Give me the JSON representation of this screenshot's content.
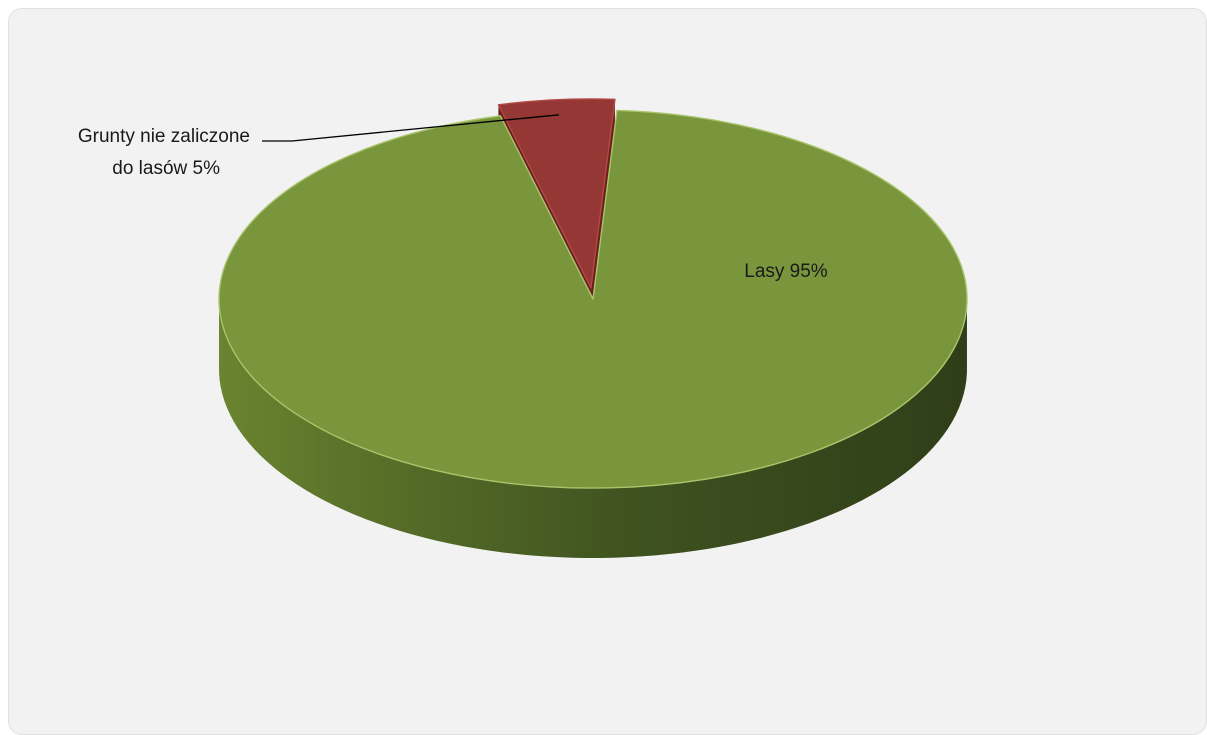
{
  "chart_data": {
    "type": "pie",
    "style": "3d",
    "slices": [
      {
        "label": "Lasy",
        "value": 95,
        "display": "Lasy 95%",
        "color": "#7a963c"
      },
      {
        "label": "Grunty nie zaliczone do lasów",
        "value": 5,
        "display_lines": [
          "Grunty nie zaliczone",
          "do lasów 5%"
        ],
        "color": "#953735"
      }
    ],
    "title": "",
    "legend": "none"
  }
}
